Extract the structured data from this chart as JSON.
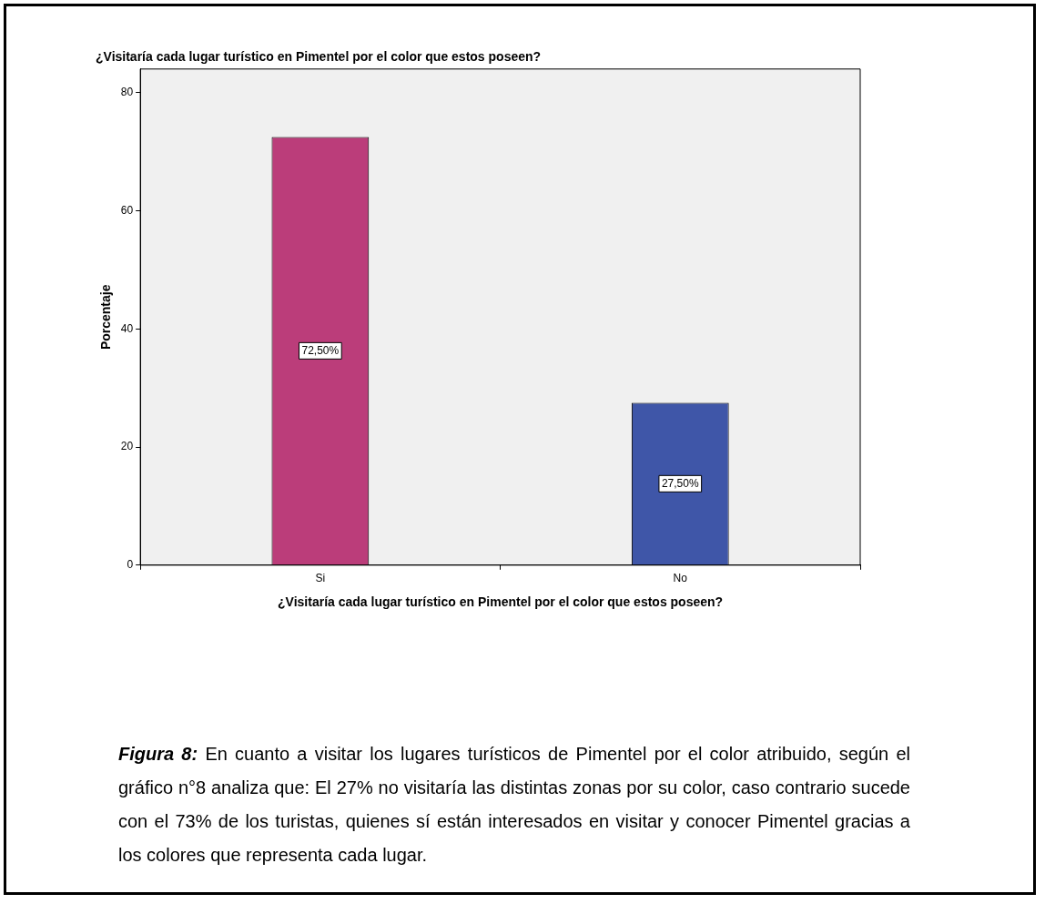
{
  "chart_data": {
    "type": "bar",
    "title": "¿Visitaría cada lugar turístico en Pimentel por el color que estos poseen?",
    "xlabel": "¿Visitaría cada lugar turístico en Pimentel por el color que estos poseen?",
    "ylabel": "Porcentaje",
    "categories": [
      "Si",
      "No"
    ],
    "values": [
      72.5,
      27.5
    ],
    "colors": [
      "#bb3d7a",
      "#3f56a8"
    ],
    "value_labels": [
      "72,50%",
      "27,50%"
    ],
    "ylim": [
      0,
      84
    ],
    "yticks": [
      0,
      20,
      40,
      60,
      80
    ],
    "grid": false,
    "annotations": [
      "Figura 8:",
      "En cuanto a visitar los lugares turísticos de Pimentel por el color atribuido, según el gráfico n°8 analiza que: El 27% no visitaría las distintas zonas por su color, caso contrario sucede con el 73% de los turistas, quienes sí están interesados en visitar y conocer Pimentel gracias a los colores que representa cada lugar."
    ]
  }
}
